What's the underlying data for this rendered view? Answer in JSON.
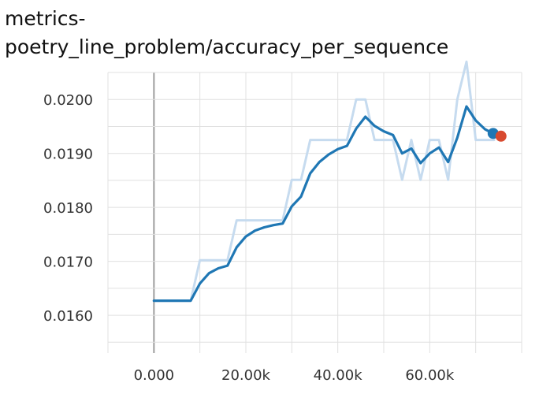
{
  "title_line1": "metrics-",
  "title_line2": "poetry_line_problem/accuracy_per_sequence",
  "colors": {
    "smoothed": "#1f77b4",
    "raw": "#c6dbef",
    "grid": "#e0e0e0",
    "marker_run1": "#1f77b4",
    "marker_run2": "#d84a2f"
  },
  "chart_data": {
    "type": "line",
    "title": "metrics-poetry_line_problem/accuracy_per_sequence",
    "xlabel": "",
    "ylabel": "",
    "xlim": [
      -10000,
      80000
    ],
    "ylim": [
      0.0153,
      0.0205
    ],
    "x_ticks": [
      0,
      20000,
      40000,
      60000
    ],
    "x_tick_labels": [
      "0.000",
      "20.00k",
      "40.00k",
      "60.00k"
    ],
    "y_ticks": [
      0.016,
      0.017,
      0.018,
      0.019,
      0.02
    ],
    "y_tick_labels": [
      "0.0160",
      "0.0170",
      "0.0180",
      "0.0190",
      "0.0200"
    ],
    "grid": true,
    "series": [
      {
        "role": "raw",
        "x": [
          0,
          8000,
          10000,
          16000,
          18000,
          28000,
          30000,
          32000,
          34000,
          36000,
          38000,
          40000,
          42000,
          44000,
          46000,
          48000,
          50000,
          52000,
          54000,
          56000,
          58000,
          60000,
          62000,
          64000,
          66000,
          68000,
          70000,
          72000,
          74000
        ],
        "values": [
          0.01627,
          0.01627,
          0.01702,
          0.01702,
          0.01776,
          0.01776,
          0.01851,
          0.01851,
          0.01925,
          0.01925,
          0.01925,
          0.01925,
          0.01925,
          0.02,
          0.02,
          0.01925,
          0.01925,
          0.01925,
          0.01851,
          0.01925,
          0.01851,
          0.01925,
          0.01925,
          0.01851,
          0.02,
          0.0207,
          0.01925,
          0.01925,
          0.01925
        ]
      },
      {
        "role": "smoothed",
        "x": [
          0,
          8000,
          10000,
          12000,
          14000,
          16000,
          18000,
          20000,
          22000,
          24000,
          26000,
          28000,
          30000,
          32000,
          34000,
          36000,
          38000,
          40000,
          42000,
          44000,
          46000,
          48000,
          50000,
          52000,
          54000,
          56000,
          58000,
          60000,
          62000,
          64000,
          66000,
          68000,
          70000,
          72000,
          73800
        ],
        "values": [
          0.01627,
          0.01627,
          0.01659,
          0.01678,
          0.01687,
          0.01692,
          0.01726,
          0.01746,
          0.01757,
          0.01763,
          0.01767,
          0.0177,
          0.01802,
          0.0182,
          0.01863,
          0.01884,
          0.01898,
          0.01908,
          0.01914,
          0.01946,
          0.01968,
          0.01951,
          0.01941,
          0.01934,
          0.019,
          0.01909,
          0.01882,
          0.019,
          0.01911,
          0.01884,
          0.01929,
          0.01987,
          0.01961,
          0.01945,
          0.01937
        ]
      }
    ],
    "markers": [
      {
        "x": 73800,
        "y": 0.01937,
        "color": "#1f77b4"
      },
      {
        "x": 75500,
        "y": 0.01932,
        "color": "#d84a2f"
      }
    ]
  }
}
